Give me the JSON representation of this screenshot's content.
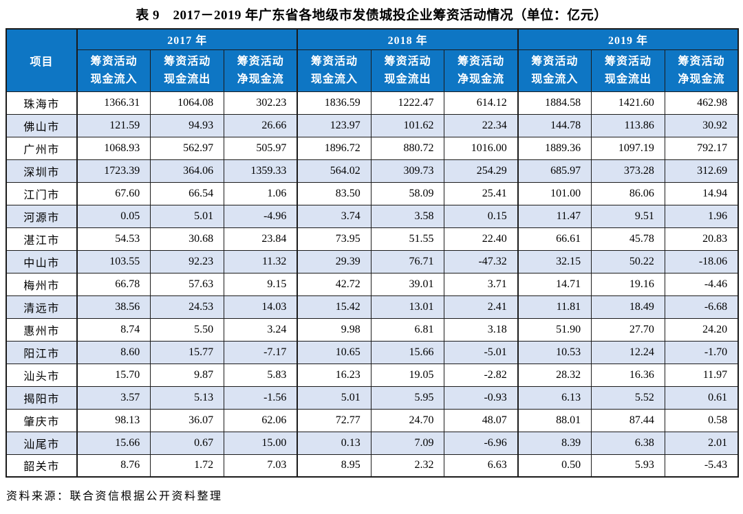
{
  "title": "表 9　2017－2019 年广东省各地级市发债城投企业筹资活动情况（单位：亿元）",
  "source_note": "资料来源：联合资信根据公开资料整理",
  "colors": {
    "header_bg": "#0e76c4",
    "header_text": "#ffffff",
    "stripe_bg": "#dae3f3",
    "border": "#1a1a1a"
  },
  "table": {
    "project_header": "项目",
    "year_groups": [
      {
        "label": "2017 年"
      },
      {
        "label": "2018 年"
      },
      {
        "label": "2019 年"
      }
    ],
    "sub_headers": [
      {
        "line1": "筹资活动",
        "line2": "现金流入"
      },
      {
        "line1": "筹资活动",
        "line2": "现金流出"
      },
      {
        "line1": "筹资活动",
        "line2": "净现金流"
      }
    ],
    "rows": [
      {
        "city": "珠海市",
        "values": [
          "1366.31",
          "1064.08",
          "302.23",
          "1836.59",
          "1222.47",
          "614.12",
          "1884.58",
          "1421.60",
          "462.98"
        ]
      },
      {
        "city": "佛山市",
        "values": [
          "121.59",
          "94.93",
          "26.66",
          "123.97",
          "101.62",
          "22.34",
          "144.78",
          "113.86",
          "30.92"
        ]
      },
      {
        "city": "广州市",
        "values": [
          "1068.93",
          "562.97",
          "505.97",
          "1896.72",
          "880.72",
          "1016.00",
          "1889.36",
          "1097.19",
          "792.17"
        ]
      },
      {
        "city": "深圳市",
        "values": [
          "1723.39",
          "364.06",
          "1359.33",
          "564.02",
          "309.73",
          "254.29",
          "685.97",
          "373.28",
          "312.69"
        ]
      },
      {
        "city": "江门市",
        "values": [
          "67.60",
          "66.54",
          "1.06",
          "83.50",
          "58.09",
          "25.41",
          "101.00",
          "86.06",
          "14.94"
        ]
      },
      {
        "city": "河源市",
        "values": [
          "0.05",
          "5.01",
          "-4.96",
          "3.74",
          "3.58",
          "0.15",
          "11.47",
          "9.51",
          "1.96"
        ]
      },
      {
        "city": "湛江市",
        "values": [
          "54.53",
          "30.68",
          "23.84",
          "73.95",
          "51.55",
          "22.40",
          "66.61",
          "45.78",
          "20.83"
        ]
      },
      {
        "city": "中山市",
        "values": [
          "103.55",
          "92.23",
          "11.32",
          "29.39",
          "76.71",
          "-47.32",
          "32.15",
          "50.22",
          "-18.06"
        ]
      },
      {
        "city": "梅州市",
        "values": [
          "66.78",
          "57.63",
          "9.15",
          "42.72",
          "39.01",
          "3.71",
          "14.71",
          "19.16",
          "-4.46"
        ]
      },
      {
        "city": "清远市",
        "values": [
          "38.56",
          "24.53",
          "14.03",
          "15.42",
          "13.01",
          "2.41",
          "11.81",
          "18.49",
          "-6.68"
        ]
      },
      {
        "city": "惠州市",
        "values": [
          "8.74",
          "5.50",
          "3.24",
          "9.98",
          "6.81",
          "3.18",
          "51.90",
          "27.70",
          "24.20"
        ]
      },
      {
        "city": "阳江市",
        "values": [
          "8.60",
          "15.77",
          "-7.17",
          "10.65",
          "15.66",
          "-5.01",
          "10.53",
          "12.24",
          "-1.70"
        ]
      },
      {
        "city": "汕头市",
        "values": [
          "15.70",
          "9.87",
          "5.83",
          "16.23",
          "19.05",
          "-2.82",
          "28.32",
          "16.36",
          "11.97"
        ]
      },
      {
        "city": "揭阳市",
        "values": [
          "3.57",
          "5.13",
          "-1.56",
          "5.01",
          "5.95",
          "-0.93",
          "6.13",
          "5.52",
          "0.61"
        ]
      },
      {
        "city": "肇庆市",
        "values": [
          "98.13",
          "36.07",
          "62.06",
          "72.77",
          "24.70",
          "48.07",
          "88.01",
          "87.44",
          "0.58"
        ]
      },
      {
        "city": "汕尾市",
        "values": [
          "15.66",
          "0.67",
          "15.00",
          "0.13",
          "7.09",
          "-6.96",
          "8.39",
          "6.38",
          "2.01"
        ]
      },
      {
        "city": "韶关市",
        "values": [
          "8.76",
          "1.72",
          "7.03",
          "8.95",
          "2.32",
          "6.63",
          "0.50",
          "5.93",
          "-5.43"
        ]
      }
    ]
  }
}
